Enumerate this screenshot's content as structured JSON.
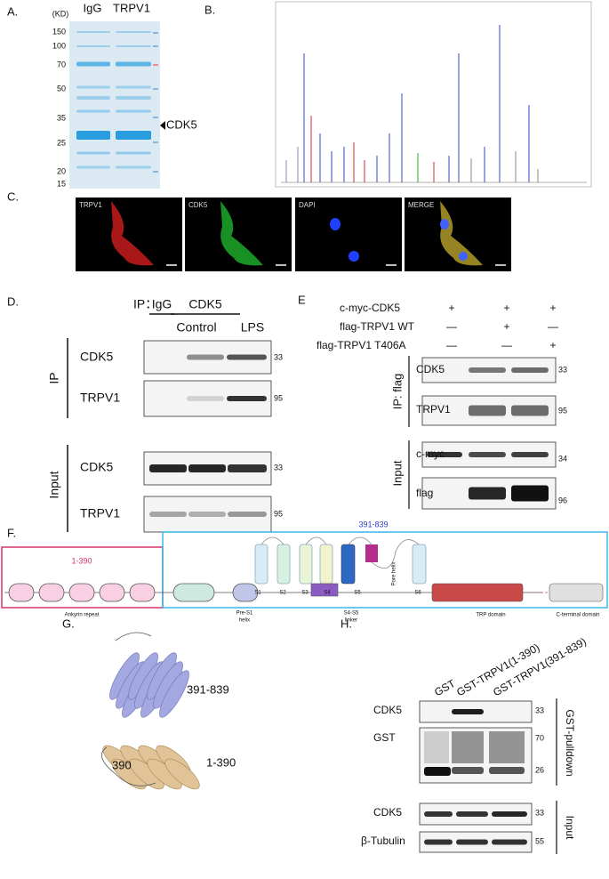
{
  "panel_a": {
    "label": "A.",
    "unit": "(KD)",
    "lanes": [
      "IgG",
      "TRPV1"
    ],
    "markers": [
      "150",
      "100",
      "70",
      "50",
      "35",
      "25",
      "20",
      "15"
    ],
    "annotation": "CDK5"
  },
  "panel_b": {
    "label": "B."
  },
  "panel_c": {
    "label": "C.",
    "channels": [
      "TRPV1",
      "CDK5",
      "DAPI",
      "MERGE"
    ]
  },
  "panel_d": {
    "label": "D.",
    "ip_label": "IP：",
    "groups": [
      "IgG",
      "CDK5"
    ],
    "lanes": [
      "Control",
      "LPS"
    ],
    "sections": [
      "IP",
      "Input"
    ],
    "rows": [
      {
        "name": "CDK5",
        "marker": "33"
      },
      {
        "name": "TRPV1",
        "marker": "95"
      },
      {
        "name": "CDK5",
        "marker": "33"
      },
      {
        "name": "TRPV1",
        "marker": "95"
      }
    ]
  },
  "panel_e": {
    "label": "E",
    "conditions": [
      {
        "name": "c-myc-CDK5",
        "signs": [
          "+",
          "+",
          "+"
        ]
      },
      {
        "name": "flag-TRPV1 WT",
        "signs": [
          "—",
          "+",
          "—"
        ]
      },
      {
        "name": "flag-TRPV1 T406A",
        "signs": [
          "—",
          "—",
          "+"
        ]
      }
    ],
    "sections": [
      "IP: flag",
      "Input"
    ],
    "rows": [
      {
        "name": "CDK5",
        "marker": "33"
      },
      {
        "name": "TRPV1",
        "marker": "95"
      },
      {
        "name": "c-myc",
        "marker": "34"
      },
      {
        "name": "flag",
        "marker": "96"
      }
    ]
  },
  "panel_f": {
    "label": "F.",
    "ranges": [
      "1-390",
      "391-839"
    ],
    "domains": [
      "Ankyrin repeat",
      "Pre-S1",
      "helix",
      "S4-S5",
      "linker",
      "Pore helix",
      "TRP domain",
      "C-terminal domain"
    ],
    "segments": [
      "S1",
      "S2",
      "S3",
      "S4",
      "S5",
      "S6"
    ]
  },
  "panel_g": {
    "label": "G.",
    "labels": [
      "391-839",
      "390",
      "1-390"
    ]
  },
  "panel_h": {
    "label": "H.",
    "lanes": [
      "GST",
      "GST-TRPV1(1-390)",
      "GST-TRPV1(391-839)"
    ],
    "sections": [
      "GST-pulldown",
      "Input"
    ],
    "rows": [
      {
        "name": "CDK5",
        "marker": "33"
      },
      {
        "name": "GST"
      },
      {
        "name": "CDK5",
        "marker": "33"
      },
      {
        "name": "β-Tubulin",
        "marker": "55"
      }
    ],
    "markers_gst": [
      "70",
      "26"
    ]
  }
}
